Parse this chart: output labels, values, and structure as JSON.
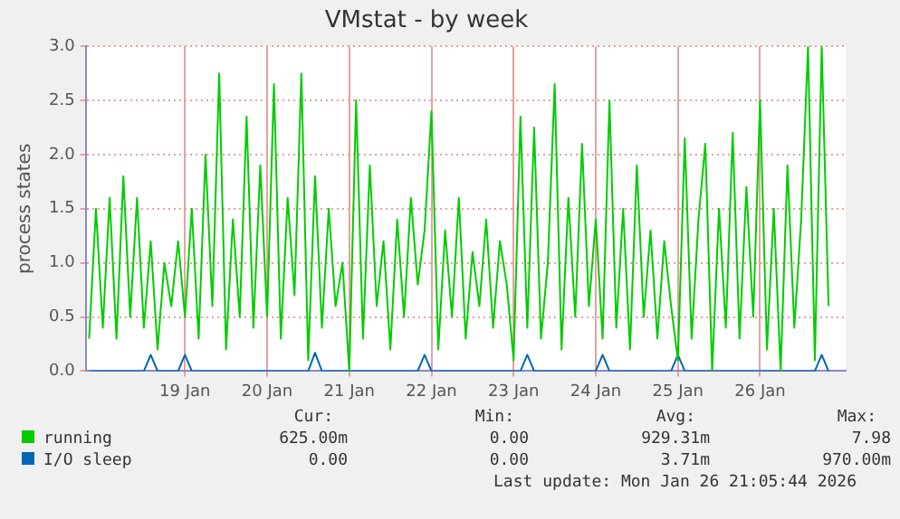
{
  "chart_data": {
    "type": "line",
    "title": "VMstat - by week",
    "ylabel": "process states",
    "x": [
      "2026-01-17T20:00",
      "2026-01-17T22:00",
      "2026-01-18T00:00",
      "2026-01-18T02:00",
      "2026-01-18T04:00",
      "2026-01-18T06:00",
      "2026-01-18T08:00",
      "2026-01-18T10:00",
      "2026-01-18T12:00",
      "2026-01-18T14:00",
      "2026-01-18T16:00",
      "2026-01-18T18:00",
      "2026-01-18T20:00",
      "2026-01-18T22:00",
      "2026-01-19T00:00",
      "2026-01-19T02:00",
      "2026-01-19T04:00",
      "2026-01-19T06:00",
      "2026-01-19T08:00",
      "2026-01-19T10:00",
      "2026-01-19T12:00",
      "2026-01-19T14:00",
      "2026-01-19T16:00",
      "2026-01-19T18:00",
      "2026-01-19T20:00",
      "2026-01-19T22:00",
      "2026-01-20T00:00",
      "2026-01-20T02:00",
      "2026-01-20T04:00",
      "2026-01-20T06:00",
      "2026-01-20T08:00",
      "2026-01-20T10:00",
      "2026-01-20T12:00",
      "2026-01-20T14:00",
      "2026-01-20T16:00",
      "2026-01-20T18:00",
      "2026-01-20T20:00",
      "2026-01-20T22:00",
      "2026-01-21T00:00",
      "2026-01-21T02:00",
      "2026-01-21T04:00",
      "2026-01-21T06:00",
      "2026-01-21T08:00",
      "2026-01-21T10:00",
      "2026-01-21T12:00",
      "2026-01-21T14:00",
      "2026-01-21T16:00",
      "2026-01-21T18:00",
      "2026-01-21T20:00",
      "2026-01-21T22:00",
      "2026-01-22T00:00",
      "2026-01-22T02:00",
      "2026-01-22T04:00",
      "2026-01-22T06:00",
      "2026-01-22T08:00",
      "2026-01-22T10:00",
      "2026-01-22T12:00",
      "2026-01-22T14:00",
      "2026-01-22T16:00",
      "2026-01-22T18:00",
      "2026-01-22T20:00",
      "2026-01-22T22:00",
      "2026-01-23T00:00",
      "2026-01-23T02:00",
      "2026-01-23T04:00",
      "2026-01-23T06:00",
      "2026-01-23T08:00",
      "2026-01-23T10:00",
      "2026-01-23T12:00",
      "2026-01-23T14:00",
      "2026-01-23T16:00",
      "2026-01-23T18:00",
      "2026-01-23T20:00",
      "2026-01-23T22:00",
      "2026-01-24T00:00",
      "2026-01-24T02:00",
      "2026-01-24T04:00",
      "2026-01-24T06:00",
      "2026-01-24T08:00",
      "2026-01-24T10:00",
      "2026-01-24T12:00",
      "2026-01-24T14:00",
      "2026-01-24T16:00",
      "2026-01-24T18:00",
      "2026-01-24T20:00",
      "2026-01-24T22:00",
      "2026-01-25T00:00",
      "2026-01-25T02:00",
      "2026-01-25T04:00",
      "2026-01-25T06:00",
      "2026-01-25T08:00",
      "2026-01-25T10:00",
      "2026-01-25T12:00",
      "2026-01-25T14:00",
      "2026-01-25T16:00",
      "2026-01-25T18:00",
      "2026-01-25T20:00",
      "2026-01-25T22:00",
      "2026-01-26T00:00",
      "2026-01-26T02:00",
      "2026-01-26T04:00",
      "2026-01-26T06:00",
      "2026-01-26T08:00",
      "2026-01-26T10:00",
      "2026-01-26T12:00",
      "2026-01-26T14:00",
      "2026-01-26T16:00",
      "2026-01-26T18:00",
      "2026-01-26T20:00"
    ],
    "series": [
      {
        "name": "running",
        "color": "#00cc00",
        "values": [
          0.3,
          1.5,
          0.4,
          1.6,
          0.3,
          1.8,
          0.5,
          1.6,
          0.4,
          1.2,
          0.2,
          1.0,
          0.6,
          1.2,
          0.5,
          1.5,
          0.3,
          2.0,
          0.6,
          2.75,
          0.2,
          1.4,
          0.5,
          2.35,
          0.4,
          1.9,
          0.5,
          2.65,
          0.3,
          1.6,
          0.7,
          2.75,
          0.1,
          1.8,
          0.4,
          1.5,
          0.6,
          1.0,
          0.0,
          2.5,
          0.3,
          1.9,
          0.6,
          1.2,
          0.2,
          1.4,
          0.5,
          1.6,
          0.8,
          1.3,
          2.4,
          0.2,
          1.3,
          0.5,
          1.6,
          0.3,
          1.1,
          0.6,
          1.4,
          0.4,
          1.2,
          0.8,
          0.1,
          2.35,
          0.4,
          2.25,
          0.3,
          1.0,
          2.65,
          0.2,
          1.6,
          0.5,
          2.1,
          0.6,
          1.4,
          0.3,
          2.5,
          0.4,
          1.5,
          0.2,
          1.9,
          0.5,
          1.3,
          0.3,
          1.2,
          0.6,
          0.1,
          2.15,
          0.3,
          1.4,
          2.1,
          0.0,
          1.5,
          0.4,
          2.2,
          0.3,
          1.7,
          0.5,
          2.5,
          0.2,
          1.5,
          0.0,
          1.9,
          0.4,
          1.4,
          3.0,
          0.1,
          3.0,
          0.6
        ]
      },
      {
        "name": "I/O sleep",
        "color": "#0066b3",
        "values": [
          0,
          0,
          0,
          0,
          0,
          0,
          0,
          0,
          0,
          0.15,
          0,
          0,
          0,
          0,
          0.15,
          0,
          0,
          0,
          0,
          0,
          0,
          0,
          0,
          0,
          0,
          0,
          0,
          0,
          0,
          0,
          0,
          0,
          0,
          0.17,
          0,
          0,
          0,
          0,
          0,
          0,
          0,
          0,
          0,
          0,
          0,
          0,
          0,
          0,
          0,
          0.15,
          0,
          0,
          0,
          0,
          0,
          0,
          0,
          0,
          0,
          0,
          0,
          0,
          0,
          0,
          0.15,
          0,
          0,
          0,
          0,
          0,
          0,
          0,
          0,
          0,
          0,
          0.15,
          0,
          0,
          0,
          0,
          0,
          0,
          0,
          0,
          0,
          0,
          0.15,
          0,
          0,
          0,
          0,
          0,
          0,
          0,
          0,
          0,
          0,
          0,
          0,
          0,
          0,
          0,
          0,
          0,
          0,
          0,
          0,
          0.15,
          0
        ]
      }
    ],
    "xlim": [
      "2026-01-17T19:00",
      "2026-01-27T01:00"
    ],
    "xticks": [
      {
        "value": "2026-01-19",
        "label": "19 Jan"
      },
      {
        "value": "2026-01-20",
        "label": "20 Jan"
      },
      {
        "value": "2026-01-21",
        "label": "21 Jan"
      },
      {
        "value": "2026-01-22",
        "label": "22 Jan"
      },
      {
        "value": "2026-01-23",
        "label": "23 Jan"
      },
      {
        "value": "2026-01-24",
        "label": "24 Jan"
      },
      {
        "value": "2026-01-25",
        "label": "25 Jan"
      },
      {
        "value": "2026-01-26",
        "label": "26 Jan"
      }
    ],
    "ylim": [
      0,
      3
    ],
    "yticks": [
      {
        "value": 0,
        "label": "0.0"
      },
      {
        "value": 0.5,
        "label": "0.5"
      },
      {
        "value": 1,
        "label": "1.0"
      },
      {
        "value": 1.5,
        "label": "1.5"
      },
      {
        "value": 2,
        "label": "2.0"
      },
      {
        "value": 2.5,
        "label": "2.5"
      },
      {
        "value": 3,
        "label": "3.0"
      }
    ],
    "grid": true,
    "legend": "bottom",
    "marker": "none",
    "line_style": "solid",
    "annotations": [
      "Cur:",
      "Min:",
      "Avg:",
      "Max:",
      "625.00m",
      "0.00",
      "929.31m",
      "7.98",
      "0.00",
      "0.00",
      "3.71m",
      "970.00m",
      "Last update: Mon Jan 26 21:05:44 2026"
    ]
  }
}
